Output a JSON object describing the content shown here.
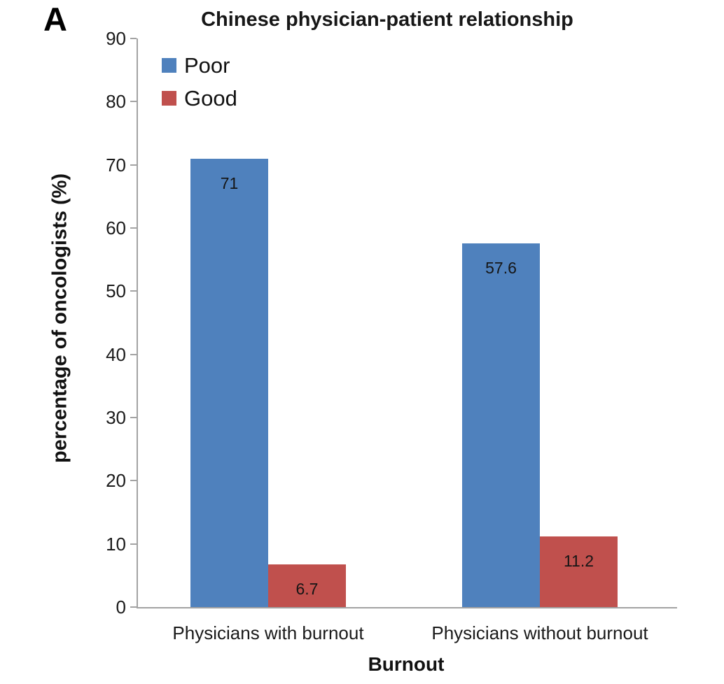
{
  "panel_label": "A",
  "chart_data": {
    "type": "bar",
    "title": "Chinese physician-patient relationship",
    "xlabel": "Burnout",
    "ylabel": "percentage of oncologists (%)",
    "categories": [
      "Physicians with burnout",
      "Physicians without burnout"
    ],
    "series": [
      {
        "name": "Poor",
        "color": "#4F81BD",
        "values": [
          71,
          57.6
        ]
      },
      {
        "name": "Good",
        "color": "#C0504D",
        "values": [
          6.7,
          11.2
        ]
      }
    ],
    "data_labels": [
      "71",
      "6.7",
      "57.6",
      "11.2"
    ],
    "ylim": [
      0,
      90
    ],
    "ytick_step": 10,
    "grid": false,
    "legend_position": "top-left-inside",
    "axis_color": "#a3a3a3",
    "text_color": "#1a1a1a"
  }
}
